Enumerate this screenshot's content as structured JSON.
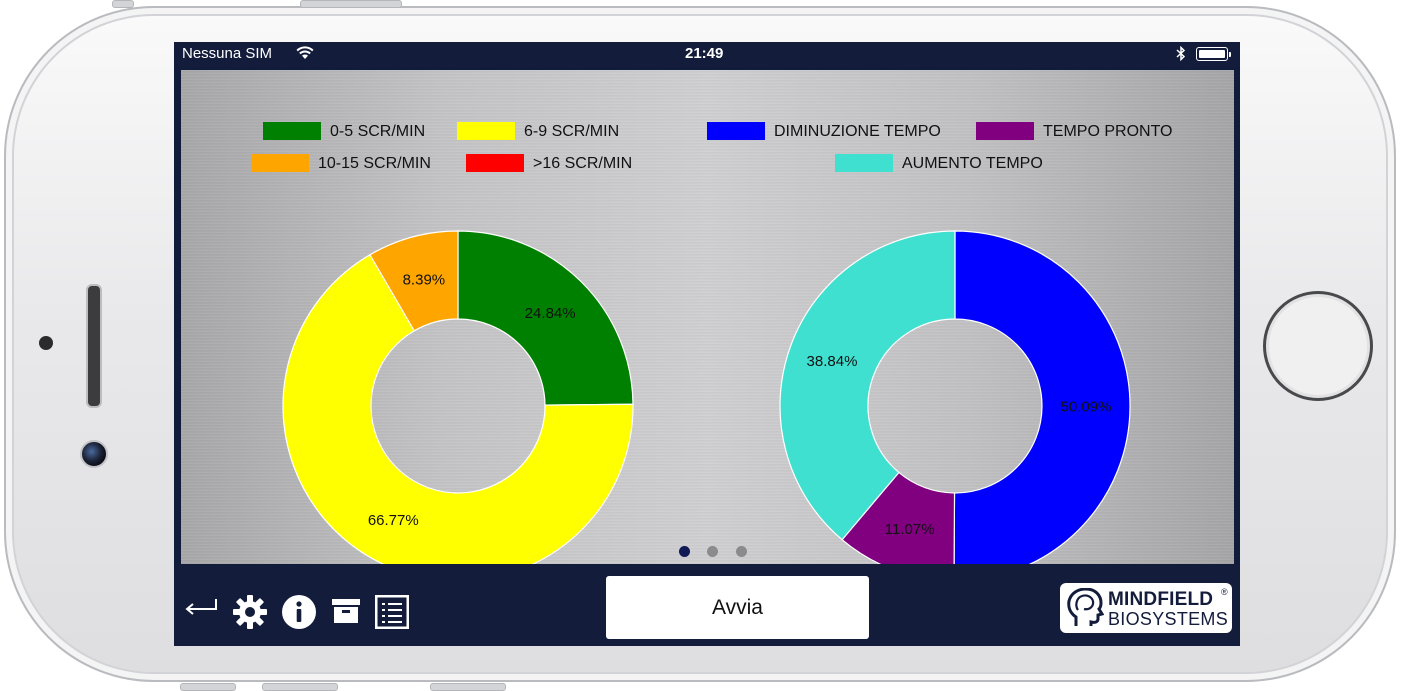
{
  "status_bar": {
    "carrier": "Nessuna SIM",
    "time": "21:49"
  },
  "legend_left": [
    {
      "label": "0-5 SCR/MIN",
      "color": "#008000"
    },
    {
      "label": "6-9 SCR/MIN",
      "color": "#ffff00"
    },
    {
      "label": "10-15 SCR/MIN",
      "color": "#ffa500"
    },
    {
      "label": ">16 SCR/MIN",
      "color": "#ff0000"
    }
  ],
  "legend_right": [
    {
      "label": "DIMINUZIONE TEMPO",
      "color": "#0000ff"
    },
    {
      "label": "TEMPO PRONTO",
      "color": "#800080"
    },
    {
      "label": "AUMENTO TEMPO",
      "color": "#40e0d0"
    }
  ],
  "chart_data": [
    {
      "type": "pie",
      "donut": true,
      "categories": [
        "0-5 SCR/MIN",
        "6-9 SCR/MIN",
        "10-15 SCR/MIN",
        ">16 SCR/MIN"
      ],
      "values": [
        24.84,
        66.77,
        8.39,
        0
      ],
      "labels": [
        "24.84%",
        "66.77%",
        "8.39%",
        ""
      ],
      "colors": [
        "#008000",
        "#ffff00",
        "#ffa500",
        "#ff0000"
      ]
    },
    {
      "type": "pie",
      "donut": true,
      "categories": [
        "DIMINUZIONE TEMPO",
        "TEMPO PRONTO",
        "AUMENTO TEMPO"
      ],
      "values": [
        50.09,
        11.07,
        38.84
      ],
      "labels": [
        "50.09%",
        "11.07%",
        "38.84%"
      ],
      "colors": [
        "#0000ff",
        "#800080",
        "#40e0d0"
      ]
    }
  ],
  "page_dots": {
    "count": 3,
    "active": 0
  },
  "toolbar": {
    "icons": [
      "back-icon",
      "gear-icon",
      "info-icon",
      "archive-icon",
      "list-icon"
    ],
    "start_label": "Avvia"
  },
  "logo": {
    "line1": "MINDFIELD",
    "line2": "BIOSYSTEMS",
    "reg": "®"
  }
}
